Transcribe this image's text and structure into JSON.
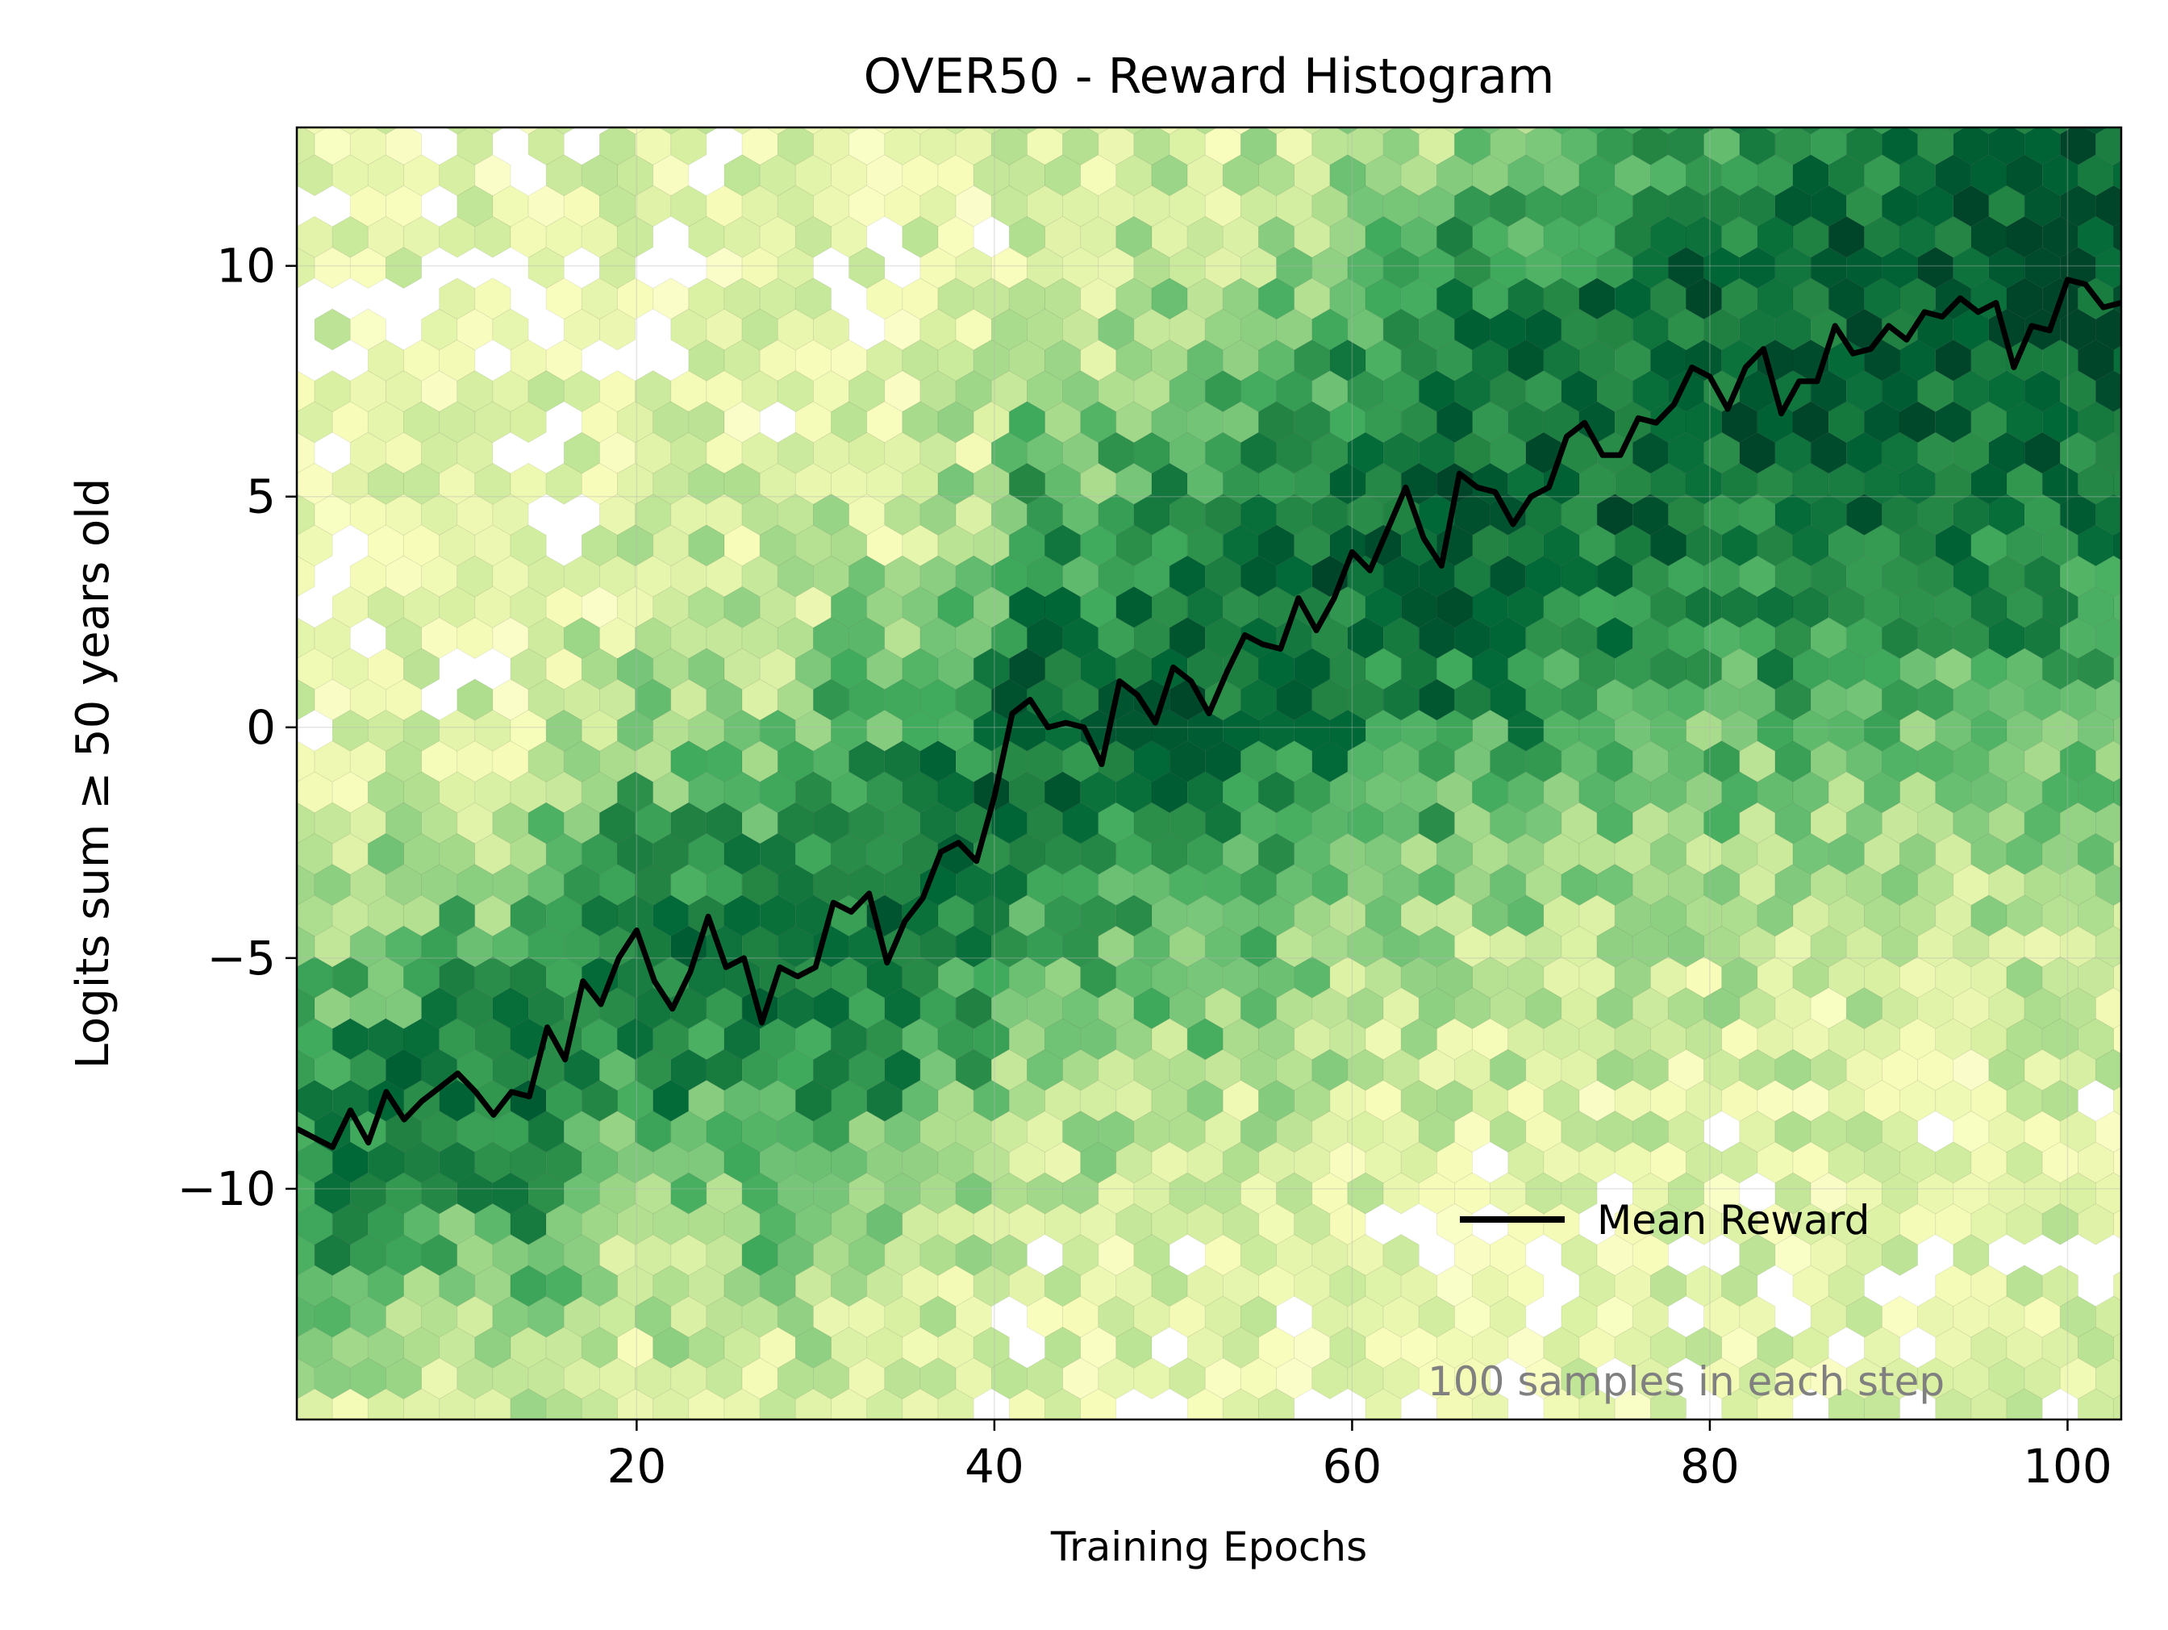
{
  "chart_data": {
    "type": "hexbin",
    "title": "OVER50 - Reward Histogram",
    "xlabel": "Training Epochs",
    "ylabel": "Logits sum  ≥ 50 years old",
    "xlim": [
      1,
      103
    ],
    "ylim": [
      -15,
      13
    ],
    "x_ticks": [
      20,
      40,
      60,
      80,
      100
    ],
    "y_ticks": [
      -10,
      -5,
      0,
      5,
      10
    ],
    "x_tick_labels": [
      "20",
      "40",
      "60",
      "80",
      "100"
    ],
    "y_tick_labels": [
      "−10",
      "−5",
      "0",
      "5",
      "10"
    ],
    "grid": true,
    "legend": {
      "position": "lower-right",
      "entries": [
        "Mean Reward"
      ]
    },
    "annotation": "100 samples in each step",
    "colormap": "YlGn",
    "colors": {
      "mean_line": "#000000",
      "annotation": "#808080"
    },
    "series": [
      {
        "name": "Mean Reward",
        "type": "line",
        "x": [
          1,
          2,
          3,
          4,
          5,
          6,
          7,
          8,
          9,
          10,
          11,
          12,
          13,
          14,
          15,
          16,
          17,
          18,
          19,
          20,
          21,
          22,
          23,
          24,
          25,
          26,
          27,
          28,
          29,
          30,
          31,
          32,
          33,
          34,
          35,
          36,
          37,
          38,
          39,
          40,
          41,
          42,
          43,
          44,
          45,
          46,
          47,
          48,
          49,
          50,
          51,
          52,
          53,
          54,
          55,
          56,
          57,
          58,
          59,
          60,
          61,
          62,
          63,
          64,
          65,
          66,
          67,
          68,
          69,
          70,
          71,
          72,
          73,
          74,
          75,
          76,
          77,
          78,
          79,
          80,
          81,
          82,
          83,
          84,
          85,
          86,
          87,
          88,
          89,
          90,
          91,
          92,
          93,
          94,
          95,
          96,
          97,
          98,
          99,
          100,
          101,
          102,
          103
        ],
        "y": [
          -8.7,
          -8.9,
          -9.1,
          -8.3,
          -9.0,
          -7.9,
          -8.5,
          -8.1,
          -7.8,
          -7.5,
          -7.9,
          -8.4,
          -7.9,
          -8.0,
          -6.5,
          -7.2,
          -5.5,
          -6.0,
          -5.0,
          -4.4,
          -5.5,
          -6.1,
          -5.3,
          -4.1,
          -5.2,
          -5.0,
          -6.4,
          -5.2,
          -5.4,
          -5.2,
          -3.8,
          -4.0,
          -3.6,
          -5.1,
          -4.2,
          -3.7,
          -2.7,
          -2.5,
          -2.9,
          -1.5,
          0.3,
          0.6,
          0.0,
          0.1,
          0.0,
          -0.8,
          1.0,
          0.7,
          0.1,
          1.3,
          1.0,
          0.3,
          1.2,
          2.0,
          1.8,
          1.7,
          2.8,
          2.1,
          2.8,
          3.8,
          3.4,
          4.3,
          5.2,
          4.1,
          3.5,
          5.5,
          5.2,
          5.1,
          4.4,
          5.0,
          5.2,
          6.3,
          6.6,
          5.9,
          5.9,
          6.7,
          6.6,
          7.0,
          7.8,
          7.6,
          6.9,
          7.8,
          8.2,
          6.8,
          7.5,
          7.5,
          8.7,
          8.1,
          8.2,
          8.7,
          8.4,
          9.0,
          8.9,
          9.3,
          9.0,
          9.2,
          7.8,
          8.7,
          8.6,
          9.7,
          9.6,
          9.1,
          9.2
        ]
      }
    ]
  }
}
